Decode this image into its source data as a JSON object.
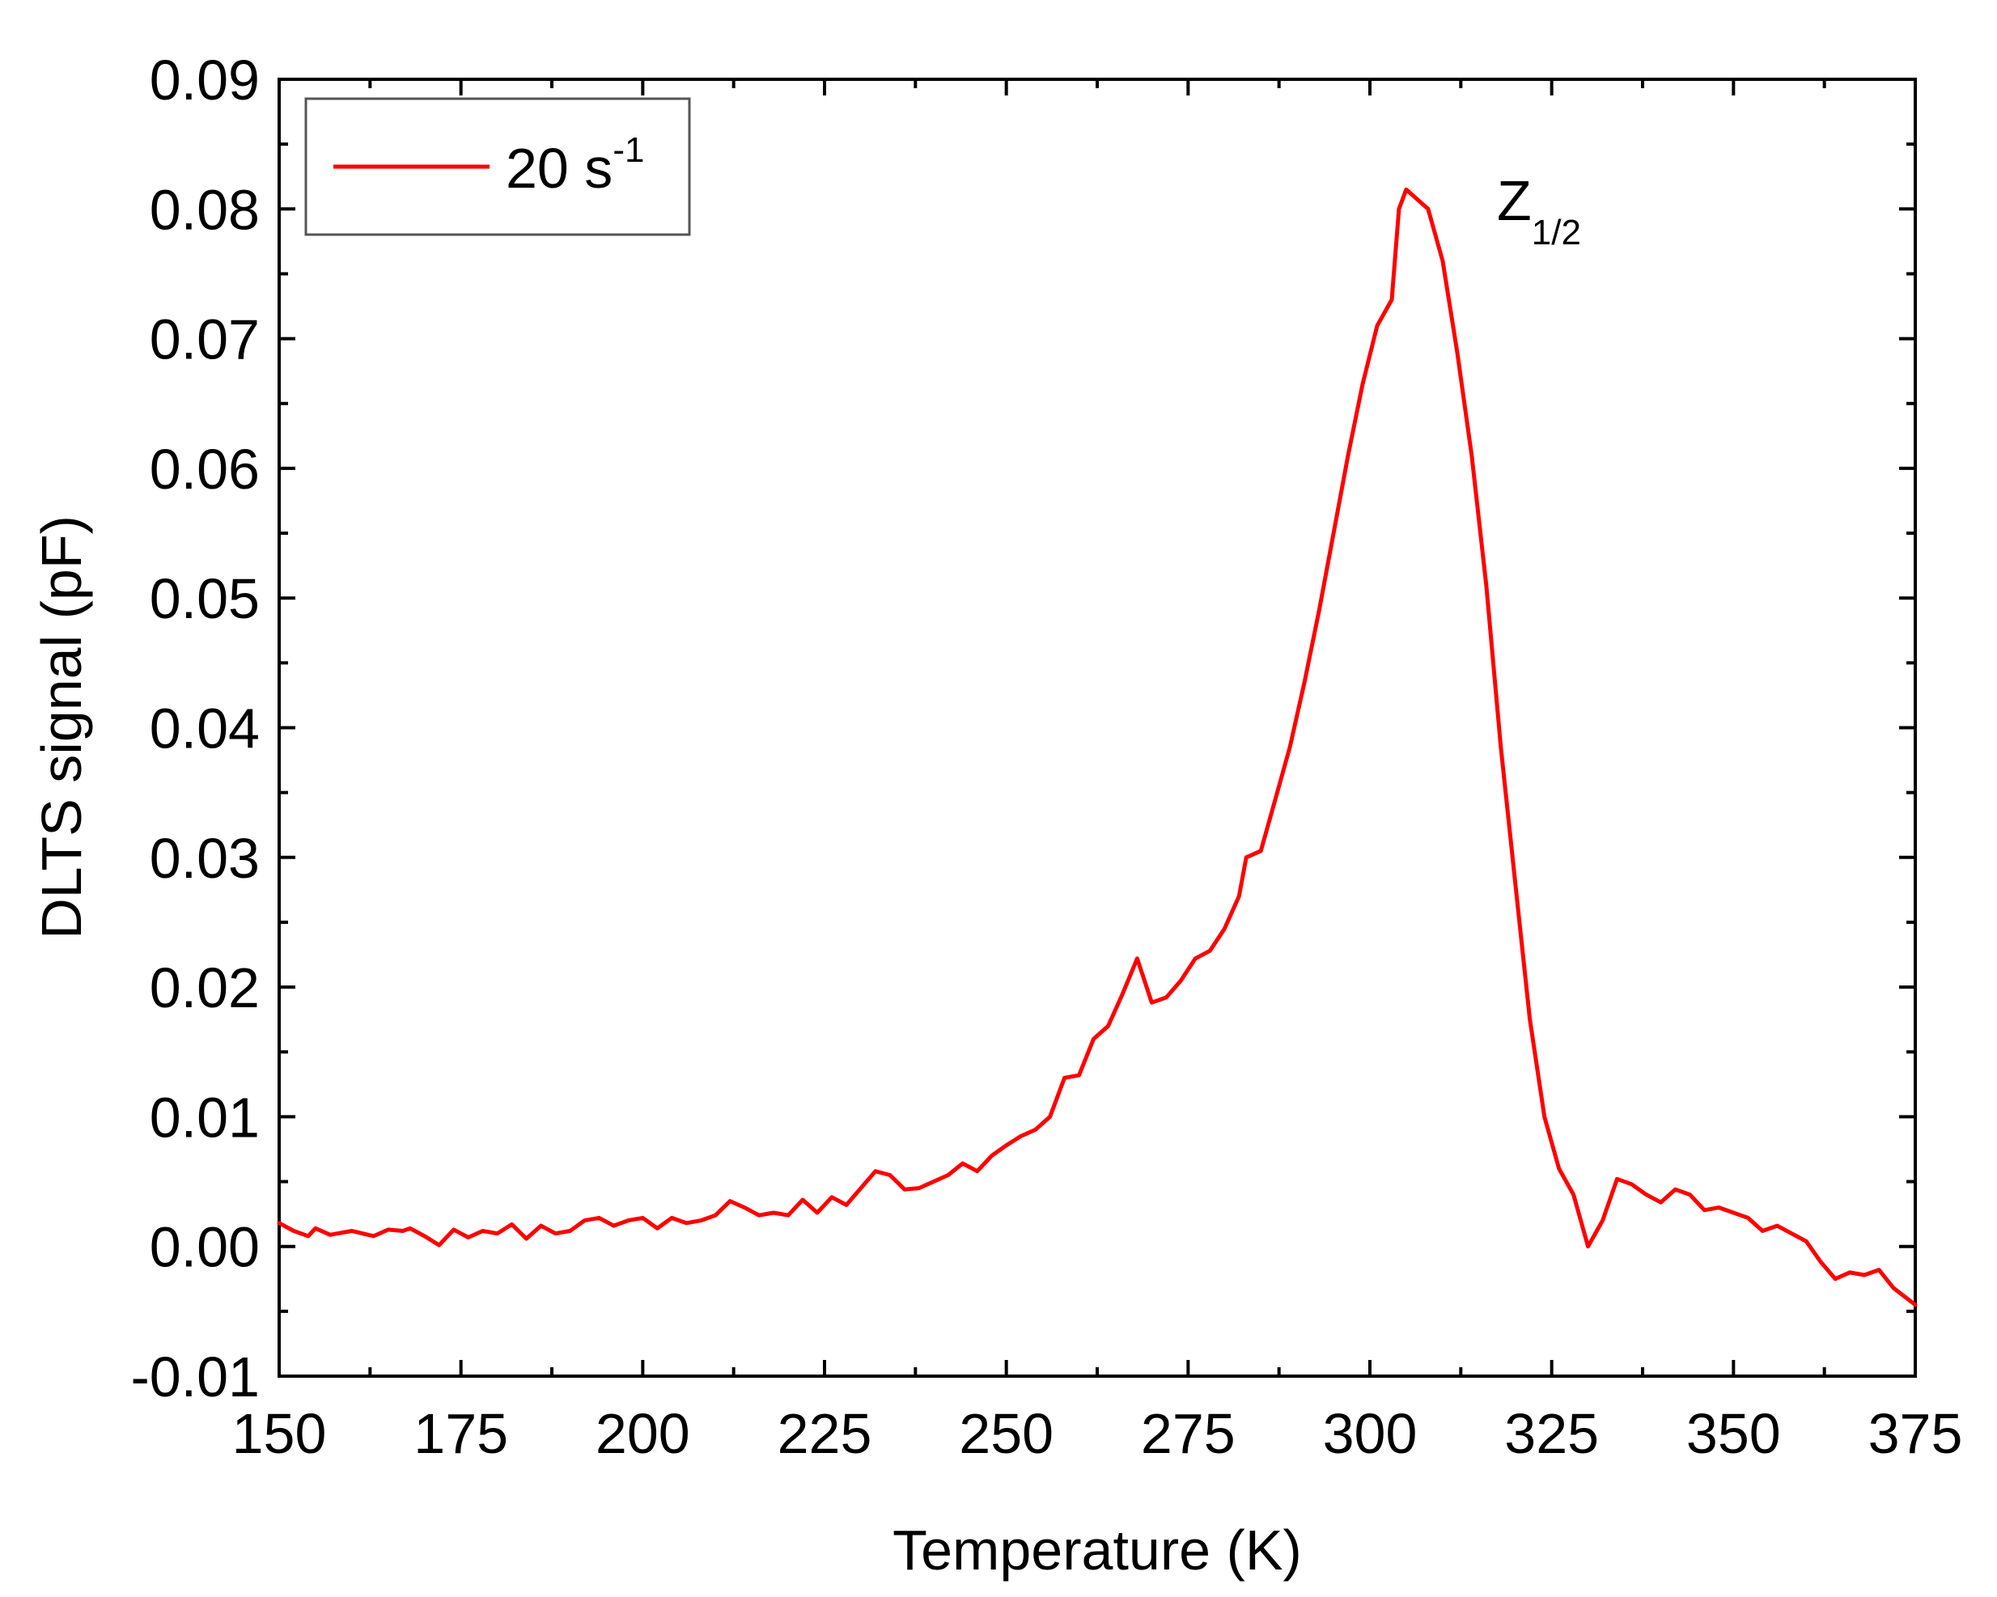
{
  "chart_data": {
    "type": "line",
    "title": "",
    "xlabel": "Temperature (K)",
    "ylabel": "DLTS signal (pF)",
    "xlim": [
      150,
      375
    ],
    "ylim": [
      -0.01,
      0.09
    ],
    "x_ticks": [
      "150",
      "175",
      "200",
      "225",
      "250",
      "275",
      "300",
      "325",
      "350",
      "375"
    ],
    "y_ticks": [
      "-0.01",
      "0.00",
      "0.01",
      "0.02",
      "0.03",
      "0.04",
      "0.05",
      "0.06",
      "0.07",
      "0.08",
      "0.09"
    ],
    "grid": false,
    "legend": {
      "position": "top-left"
    },
    "annotations": [
      {
        "base": "Z",
        "sub": "1/2",
        "x": 307,
        "y": 0.08
      }
    ],
    "series": [
      {
        "name": "20 s",
        "name_sup": "-1",
        "color": "#ff0000",
        "x": [
          150,
          152,
          154,
          155,
          157,
          160,
          163,
          165,
          167,
          168,
          170,
          172,
          174,
          176,
          178,
          180,
          182,
          184,
          186,
          188,
          190,
          192,
          194,
          196,
          198,
          200,
          202,
          204,
          206,
          208,
          210,
          212,
          214,
          216,
          218,
          220,
          222,
          224,
          226,
          228,
          230,
          232,
          234,
          236,
          238,
          240,
          242,
          244,
          246,
          248,
          250,
          252,
          254,
          256,
          258,
          260,
          262,
          264,
          266,
          268,
          270,
          272,
          274,
          276,
          278,
          280,
          282,
          283,
          285,
          287,
          289,
          291,
          293,
          295,
          297,
          299,
          301,
          303,
          304,
          305,
          306,
          308,
          310,
          312,
          314,
          316,
          318,
          320,
          322,
          324,
          326,
          328,
          330,
          332,
          334,
          336,
          338,
          340,
          342,
          344,
          346,
          348,
          350,
          352,
          354,
          356,
          358,
          360,
          362,
          364,
          366,
          368,
          370,
          372,
          375
        ],
        "y": [
          0.0018,
          0.0012,
          0.0008,
          0.0014,
          0.0009,
          0.0012,
          0.0008,
          0.0013,
          0.0012,
          0.0014,
          0.0008,
          0.0001,
          0.0013,
          0.0007,
          0.0012,
          0.001,
          0.0017,
          0.0006,
          0.0016,
          0.001,
          0.0012,
          0.002,
          0.0022,
          0.0016,
          0.002,
          0.0022,
          0.0014,
          0.0022,
          0.0018,
          0.002,
          0.0024,
          0.0035,
          0.003,
          0.0024,
          0.0026,
          0.0024,
          0.0036,
          0.0026,
          0.0038,
          0.0032,
          0.0045,
          0.0058,
          0.0055,
          0.0044,
          0.0045,
          0.005,
          0.0055,
          0.0064,
          0.0058,
          0.007,
          0.0078,
          0.0085,
          0.009,
          0.01,
          0.013,
          0.0132,
          0.016,
          0.017,
          0.0195,
          0.0222,
          0.0188,
          0.0192,
          0.0205,
          0.0222,
          0.0228,
          0.0245,
          0.027,
          0.03,
          0.0305,
          0.0345,
          0.0385,
          0.0435,
          0.049,
          0.055,
          0.061,
          0.0665,
          0.071,
          0.073,
          0.08,
          0.0815,
          0.081,
          0.08,
          0.076,
          0.069,
          0.061,
          0.051,
          0.0385,
          0.028,
          0.0175,
          0.01,
          0.006,
          0.004,
          0.0,
          0.002,
          0.0052,
          0.0048,
          0.004,
          0.0034,
          0.0044,
          0.004,
          0.0028,
          0.003,
          0.0026,
          0.0022,
          0.0012,
          0.0016,
          0.001,
          0.0004,
          -0.0012,
          -0.0025,
          -0.002,
          -0.0022,
          -0.0018,
          -0.0032,
          -0.0045
        ]
      }
    ]
  }
}
